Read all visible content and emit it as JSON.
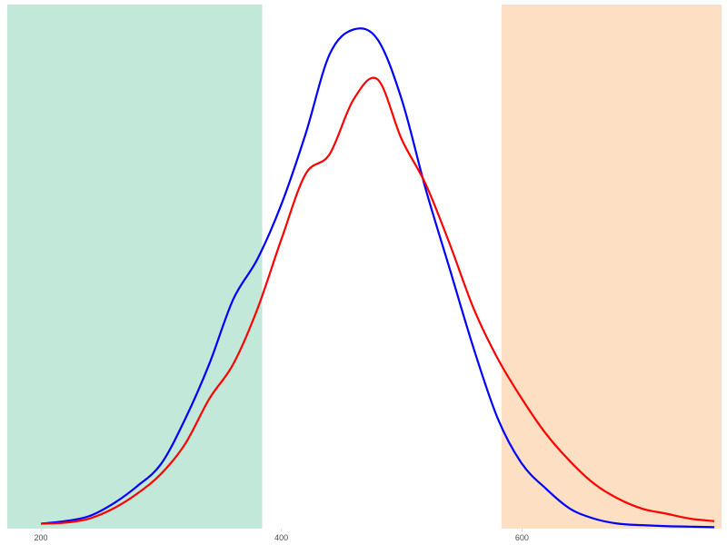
{
  "chart_data": {
    "type": "line",
    "title": "",
    "xlabel": "",
    "ylabel": "",
    "xlim": [
      172,
      766
    ],
    "ylim": [
      0,
      1.05
    ],
    "x_ticks": [
      200,
      400,
      600
    ],
    "x_tick_labels": [
      "200",
      "400",
      "600"
    ],
    "y_ticks_shown": false,
    "grid": false,
    "legend": "none",
    "shaded_regions": [
      {
        "x_start": 172,
        "x_end": 384,
        "color": "#c2e8da"
      },
      {
        "x_start": 583,
        "x_end": 766,
        "color": "#fddfc3"
      }
    ],
    "series": [
      {
        "color": "#0000ff",
        "x": [
          200,
          220,
          240,
          260,
          280,
          300,
          320,
          340,
          360,
          380,
          400,
          420,
          440,
          460,
          480,
          500,
          520,
          540,
          560,
          580,
          600,
          620,
          640,
          660,
          680,
          700,
          720,
          740,
          760
        ],
        "y": [
          0.01,
          0.015,
          0.025,
          0.05,
          0.085,
          0.13,
          0.22,
          0.33,
          0.46,
          0.54,
          0.65,
          0.79,
          0.95,
          1.0,
          0.98,
          0.86,
          0.68,
          0.52,
          0.36,
          0.22,
          0.13,
          0.08,
          0.04,
          0.02,
          0.01,
          0.007,
          0.005,
          0.004,
          0.003
        ]
      },
      {
        "color": "#ff0000",
        "x": [
          200,
          220,
          240,
          260,
          280,
          300,
          320,
          340,
          360,
          380,
          400,
          420,
          440,
          460,
          480,
          500,
          520,
          540,
          560,
          580,
          600,
          620,
          640,
          660,
          680,
          700,
          720,
          740,
          760
        ],
        "y": [
          0.01,
          0.012,
          0.02,
          0.04,
          0.07,
          0.11,
          0.17,
          0.26,
          0.33,
          0.44,
          0.58,
          0.71,
          0.75,
          0.86,
          0.9,
          0.78,
          0.69,
          0.57,
          0.44,
          0.34,
          0.26,
          0.19,
          0.135,
          0.09,
          0.06,
          0.04,
          0.03,
          0.02,
          0.015
        ]
      }
    ]
  }
}
